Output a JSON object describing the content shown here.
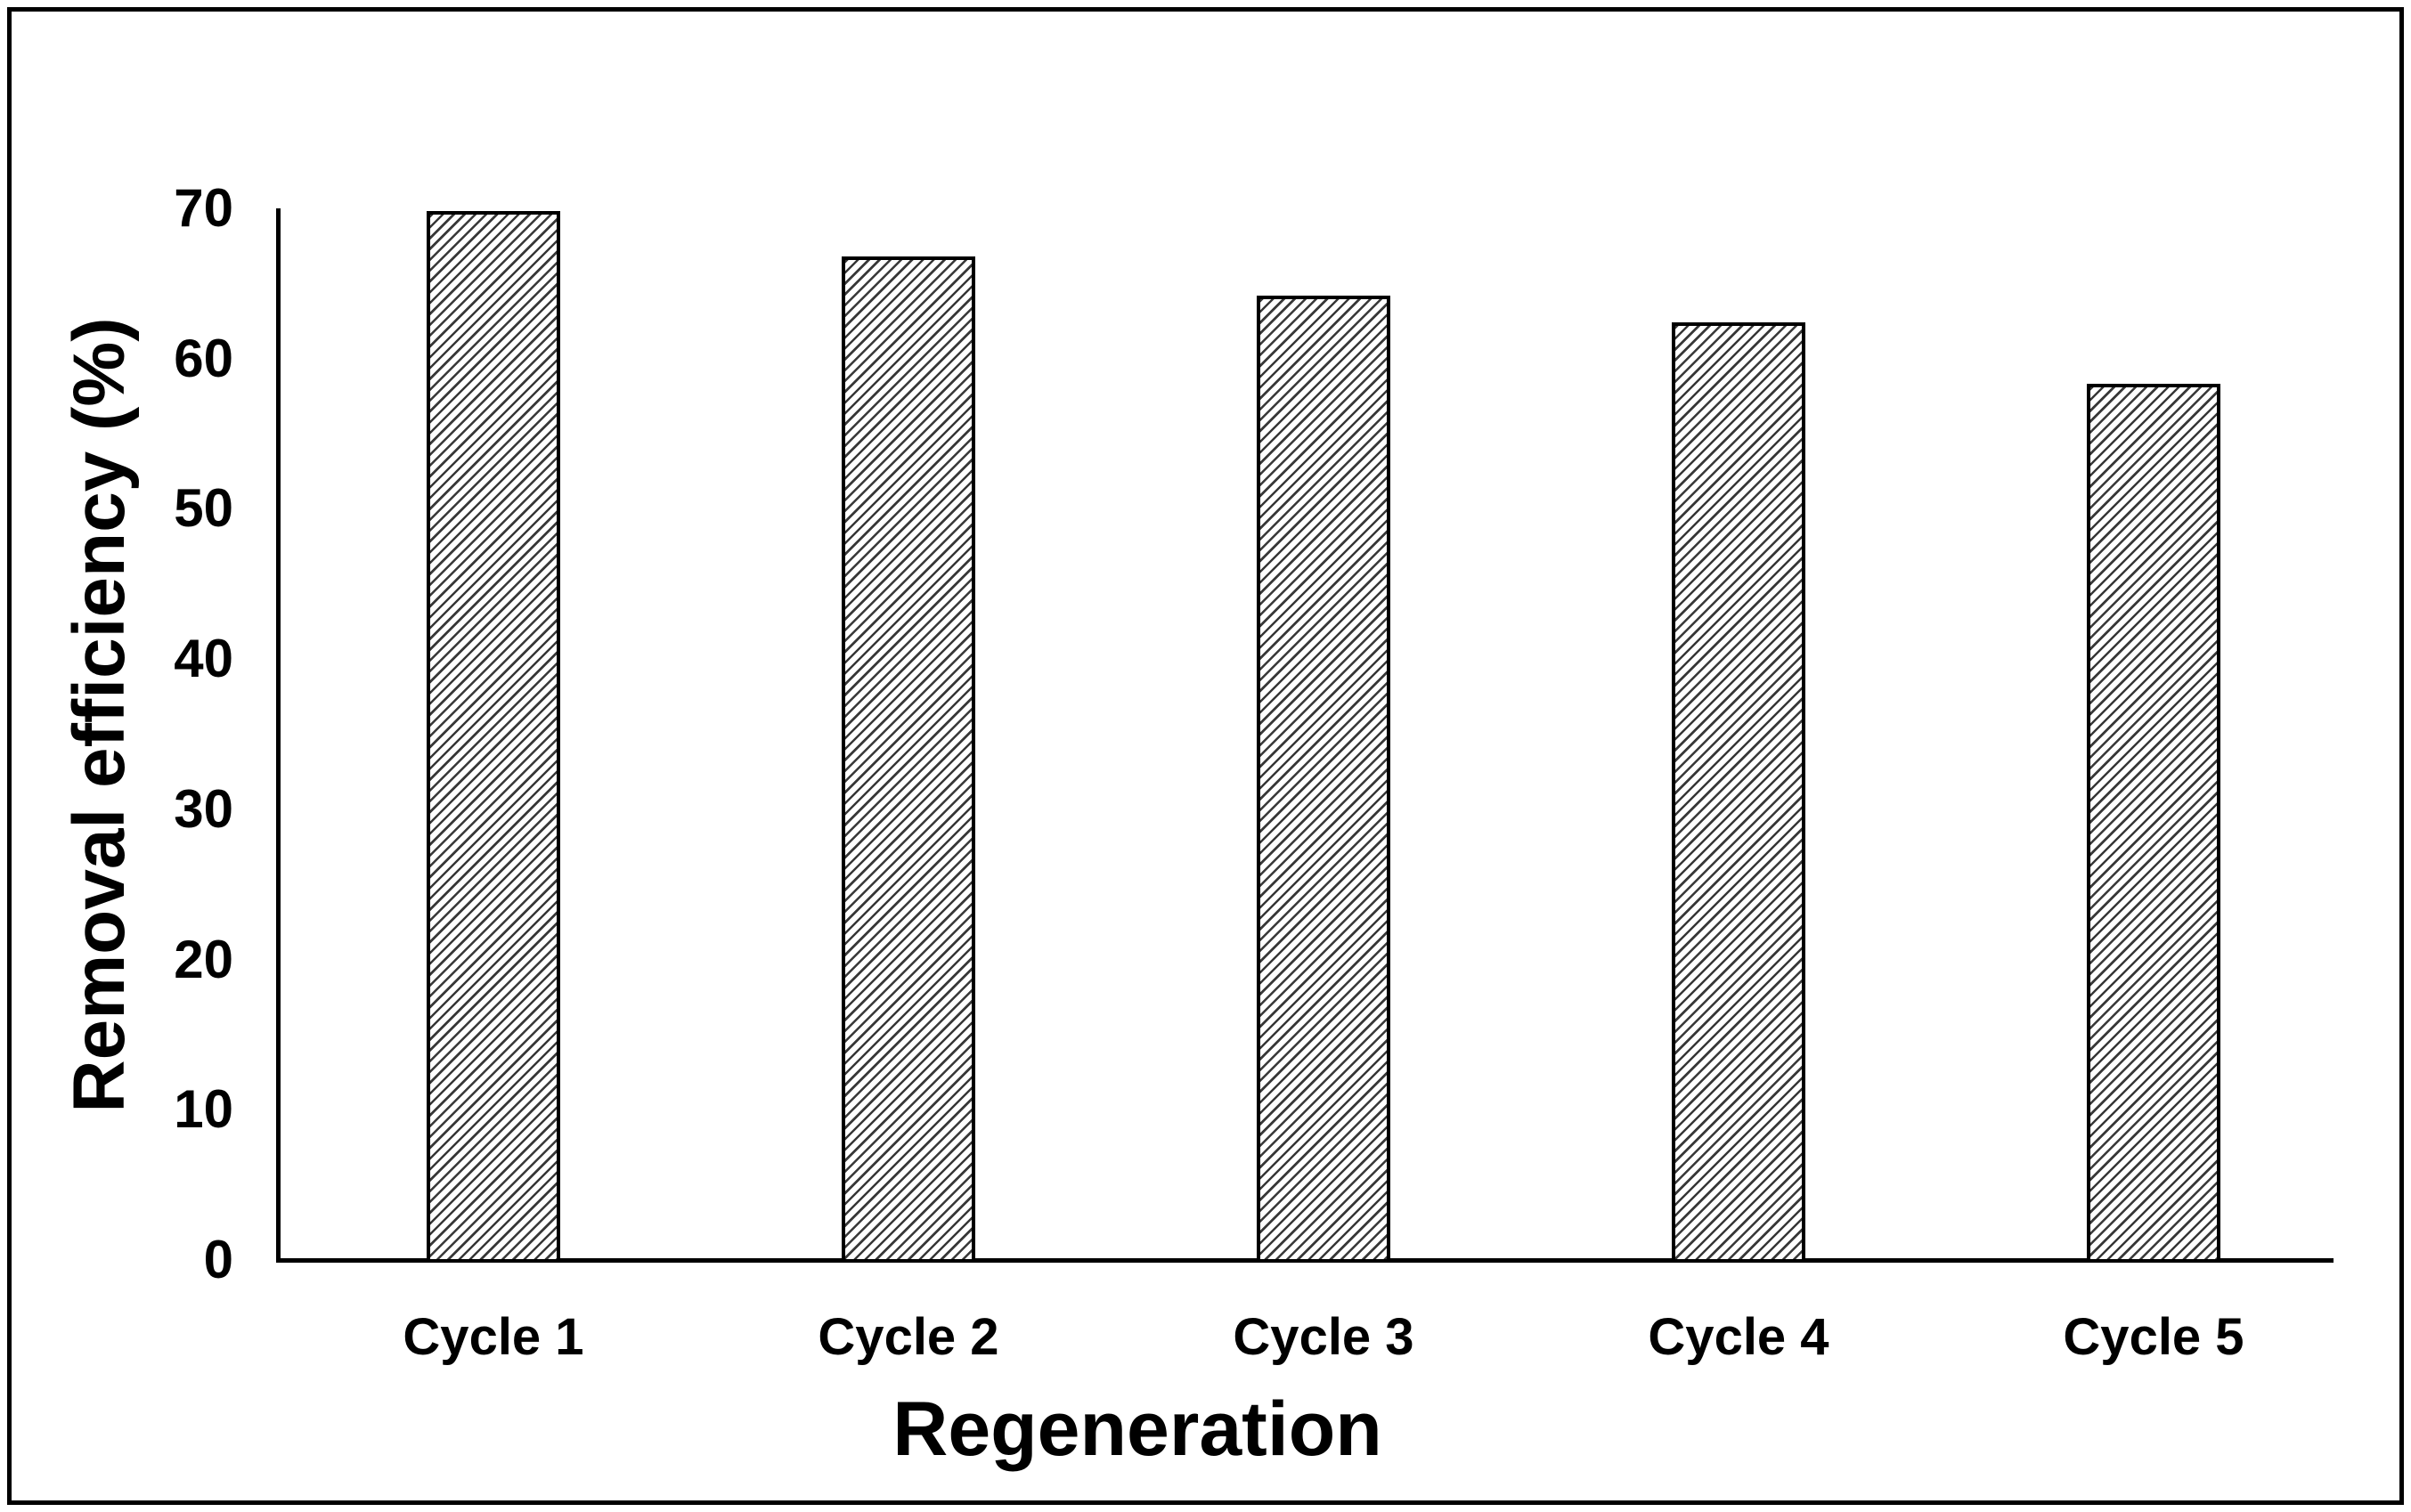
{
  "chart_data": {
    "type": "bar",
    "title": "",
    "categories": [
      "Cycle 1",
      "Cycle 2",
      "Cycle 3",
      "Cycle 4",
      "Cycle 5"
    ],
    "values": [
      69.8,
      66.8,
      64.2,
      62.4,
      58.3
    ],
    "xlabel": "Regeneration",
    "ylabel": "Removal efficiency (%)",
    "ylim": [
      0,
      70
    ],
    "yticks": [
      0,
      10,
      20,
      30,
      40,
      50,
      60,
      70
    ],
    "grid": false,
    "legend": false,
    "bar_fill": "diagonal-hatch",
    "bar_fill_angle_deg": 45,
    "bar_border_color": "#000000",
    "axis_color": "#000000",
    "text_color": "#000000",
    "background_color": "#ffffff"
  }
}
